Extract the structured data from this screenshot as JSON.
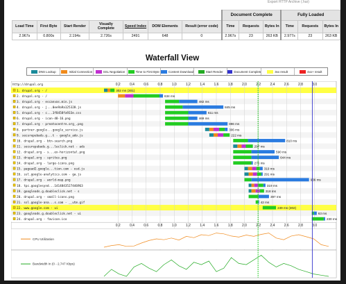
{
  "header_link": "Export HTTP Archive (.har)",
  "summary": {
    "groups": [
      "Document Complete",
      "Fully Loaded"
    ],
    "columns": [
      "Load Time",
      "First Byte",
      "Start Render",
      "Visually Complete",
      "Speed Index",
      "DOM Elements",
      "Result (error code)",
      "Time",
      "Requests",
      "Bytes In",
      "Time",
      "Requests",
      "Bytes In"
    ],
    "values": [
      "2.967s",
      "0.800s",
      "2.194s",
      "2.726s",
      "2491",
      "648",
      "0",
      "2.967s",
      "23",
      "263 KB",
      "2.977s",
      "23",
      "263 KB"
    ]
  },
  "title": "Waterfall View",
  "legend": [
    {
      "label": "DNS Lookup",
      "color": "#1a8a9a"
    },
    {
      "label": "Initial Connection",
      "color": "#f08a1c"
    },
    {
      "label": "SSL Negotiation",
      "color": "#c030d0"
    },
    {
      "label": "Time to First Byte",
      "color": "#22cc22"
    },
    {
      "label": "Content Download",
      "color": "#2a7be0"
    },
    {
      "label": "Start Render",
      "color": "#22aa22"
    },
    {
      "label": "Document Complete",
      "color": "#3333cc"
    },
    {
      "label": "3xx result",
      "color": "#ffff44"
    },
    {
      "label": "4xx+ result",
      "color": "#ee2222"
    }
  ],
  "waterfall": {
    "page_url": "http://drupal.org",
    "ticks": [
      "0.2",
      "0.4",
      "0.6",
      "0.8",
      "1.0",
      "1.2",
      "1.4",
      "1.6",
      "1.8",
      "2.0",
      "2.2",
      "2.4",
      "2.6",
      "2.8",
      "3.0"
    ],
    "max_time": 3.2,
    "start_render": 2.194,
    "document_complete": 2.967,
    "requests": [
      {
        "label": "1. drupal.org - /",
        "highlight": true,
        "phases": [
          [
            0.0,
            0.05,
            "dns"
          ],
          [
            0.05,
            0.09,
            "connect"
          ],
          [
            0.09,
            0.15,
            "ttfb"
          ]
        ],
        "duration": "302 ms (301)"
      },
      {
        "label": "2. drupal.org - /",
        "highlight": false,
        "phases": [
          [
            0.2,
            0.3,
            "connect"
          ],
          [
            0.3,
            0.42,
            "ssl"
          ],
          [
            0.42,
            0.79,
            "ttfb"
          ],
          [
            0.79,
            0.84,
            "download"
          ]
        ],
        "duration": "634 ms"
      },
      {
        "label": "3. drupal.org - escanvas.min.js",
        "highlight": false,
        "phases": [
          [
            0.87,
            1.07,
            "ttfb"
          ],
          [
            1.07,
            1.33,
            "download"
          ]
        ],
        "duration": "482 ms"
      },
      {
        "label": "4. drupal.org - j...0ee9a9a125328.js",
        "highlight": false,
        "phases": [
          [
            0.87,
            1.12,
            "ttfb"
          ],
          [
            1.12,
            1.7,
            "download"
          ]
        ],
        "duration": "845 ms"
      },
      {
        "label": "5. drupal.org - c...3f8458fa933e.css",
        "highlight": false,
        "phases": [
          [
            0.87,
            1.2,
            "ttfb"
          ],
          [
            1.2,
            1.46,
            "download"
          ]
        ],
        "duration": "611 ms"
      },
      {
        "label": "6. drupal.org - icon-48-16.png",
        "highlight": false,
        "phases": [
          [
            0.87,
            1.2,
            "ttfb"
          ],
          [
            1.2,
            1.33,
            "download"
          ]
        ],
        "duration": "469 ms"
      },
      {
        "label": "7. drupal.org - preatocentre.org_.png",
        "highlight": false,
        "phases": [
          [
            0.87,
            1.2,
            "ttfb"
          ],
          [
            1.2,
            1.76,
            "download"
          ]
        ],
        "duration": "896 ms"
      },
      {
        "label": "8. partner.google...google_service.js",
        "highlight": false,
        "phases": [
          [
            1.44,
            1.5,
            "dns"
          ],
          [
            1.5,
            1.56,
            "connect"
          ],
          [
            1.56,
            1.64,
            "ssl"
          ],
          [
            1.64,
            1.72,
            "ttfb"
          ],
          [
            1.72,
            1.76,
            "download"
          ]
        ],
        "duration": "306 ms"
      },
      {
        "label": "9. securepubads.g...t - google_ado.js",
        "highlight": false,
        "phases": [
          [
            1.5,
            1.56,
            "dns"
          ],
          [
            1.56,
            1.62,
            "connect"
          ],
          [
            1.62,
            1.7,
            "ssl"
          ],
          [
            1.7,
            1.79,
            "ttfb"
          ]
        ],
        "duration": "222 ms"
      },
      {
        "label": "10. drupal.org - btn-search.png",
        "highlight": false,
        "phases": [
          [
            1.84,
            2.05,
            "ttfb"
          ],
          [
            2.05,
            2.58,
            "download"
          ]
        ],
        "duration": "810 ms"
      },
      {
        "label": "11. securepubads.g...leclick.net - ads",
        "highlight": false,
        "phases": [
          [
            1.84,
            1.9,
            "dns"
          ],
          [
            1.9,
            1.96,
            "connect"
          ],
          [
            1.96,
            2.02,
            "ssl"
          ],
          [
            2.02,
            2.12,
            "ttfb"
          ]
        ],
        "duration": "297 ms"
      },
      {
        "label": "12. drupal.org - s...ex-horizontal.png",
        "highlight": false,
        "phases": [
          [
            1.84,
            2.1,
            "ttfb"
          ],
          [
            2.1,
            2.43,
            "download"
          ]
        ],
        "duration": "590 ms"
      },
      {
        "label": "13. drupal.org - sprites.png",
        "highlight": false,
        "phases": [
          [
            1.84,
            2.1,
            "ttfb"
          ],
          [
            2.1,
            2.49,
            "download"
          ]
        ],
        "duration": "644 ms"
      },
      {
        "label": "14. drupal.org - large-icons.png",
        "highlight": false,
        "phases": [
          [
            1.84,
            2.1,
            "ttfb"
          ],
          [
            2.1,
            2.12,
            "download"
          ]
        ],
        "duration": "275 ms"
      },
      {
        "label": "15. pagead2.google...tion.com - osd.js",
        "highlight": false,
        "phases": [
          [
            2.0,
            2.05,
            "dns"
          ],
          [
            2.05,
            2.11,
            "connect"
          ],
          [
            2.11,
            2.17,
            "ssl"
          ],
          [
            2.17,
            2.22,
            "ttfb"
          ],
          [
            2.22,
            2.26,
            "download"
          ]
        ],
        "duration": "319 ms"
      },
      {
        "label": "16. ssl.google-analytics.com - ga.js",
        "highlight": false,
        "phases": [
          [
            2.0,
            2.06,
            "dns"
          ],
          [
            2.06,
            2.12,
            "connect"
          ],
          [
            2.12,
            2.18,
            "ssl"
          ],
          [
            2.18,
            2.24,
            "ttfb"
          ],
          [
            2.24,
            2.26,
            "download"
          ]
        ],
        "duration": "291 ms"
      },
      {
        "label": "17. drupal.org - world-map.png",
        "highlight": false,
        "phases": [
          [
            2.0,
            2.1,
            "ttfb"
          ],
          [
            2.1,
            2.92,
            "download"
          ]
        ],
        "duration": "936 ms"
      },
      {
        "label": "18. tpc.googlesynd...1414843527446963",
        "highlight": false,
        "phases": [
          [
            2.06,
            2.1,
            "dns"
          ],
          [
            2.1,
            2.14,
            "connect"
          ],
          [
            2.14,
            2.2,
            "ssl"
          ],
          [
            2.2,
            2.27,
            "ttfb"
          ],
          [
            2.27,
            2.3,
            "download"
          ]
        ],
        "duration": "319 ms"
      },
      {
        "label": "19. googleads.g.doubleclick.net - s",
        "highlight": false,
        "phases": [
          [
            2.06,
            2.1,
            "dns"
          ],
          [
            2.1,
            2.16,
            "connect"
          ],
          [
            2.16,
            2.22,
            "ssl"
          ],
          [
            2.22,
            2.28,
            "ttfb"
          ]
        ],
        "duration": "318 ms"
      },
      {
        "label": "20. drupal.org - small-icons.png",
        "highlight": false,
        "phases": [
          [
            2.06,
            2.2,
            "ttfb"
          ],
          [
            2.2,
            2.35,
            "download"
          ]
        ],
        "duration": "397 ms"
      },
      {
        "label": "21. ssl.google-ana...s.com - __utm.gif",
        "highlight": false,
        "phases": [
          [
            2.16,
            2.2,
            "ttfb"
          ],
          [
            2.2,
            2.21,
            "download"
          ]
        ],
        "duration": "42 ms"
      },
      {
        "label": "22. www.google.com - ui",
        "highlight": true,
        "phases": [
          [
            2.26,
            2.45,
            "ttfb"
          ]
        ],
        "duration": "249 ms (302)"
      },
      {
        "label": "23. googleads.g.doubleclick.net - ui",
        "highlight": false,
        "phases": [
          [
            2.96,
            2.99,
            "ttfb"
          ],
          [
            2.99,
            3.03,
            "download"
          ]
        ],
        "duration": "63 ms"
      },
      {
        "label": "24. drupal.org - favicon.ico",
        "highlight": false,
        "phases": [
          [
            2.96,
            3.13,
            "ttfb"
          ],
          [
            3.13,
            3.15,
            "download"
          ]
        ],
        "duration": "230 ms"
      }
    ],
    "cpu_label": "CPU Utilization",
    "cpu_color": "#f08a1c",
    "bw_label": "Bandwidth In (0 - 2,747 Kbps)",
    "bw_color": "#22aa22",
    "cpu_series": [
      0.05,
      0.15,
      0.2,
      0.1,
      0.12,
      0.3,
      0.45,
      0.55,
      0.5,
      0.6,
      0.48,
      0.7,
      0.62,
      0.8,
      0.75,
      0.9,
      0.85,
      0.72,
      0.66,
      0.78,
      0.7,
      0.82,
      0.9,
      0.6,
      0.5,
      0.72,
      0.8,
      0.68,
      0.55,
      0.2,
      0.1
    ],
    "bw_series": [
      0.0,
      0.3,
      0.1,
      0.0,
      0.4,
      0.55,
      0.35,
      0.2,
      0.5,
      0.7,
      0.45,
      0.3,
      0.6,
      0.5,
      0.65,
      0.2,
      0.35,
      0.8,
      0.55,
      0.5,
      0.7,
      0.9,
      0.6,
      0.4,
      0.55,
      0.45,
      0.3,
      0.2,
      0.1,
      0.05,
      0.0
    ]
  }
}
